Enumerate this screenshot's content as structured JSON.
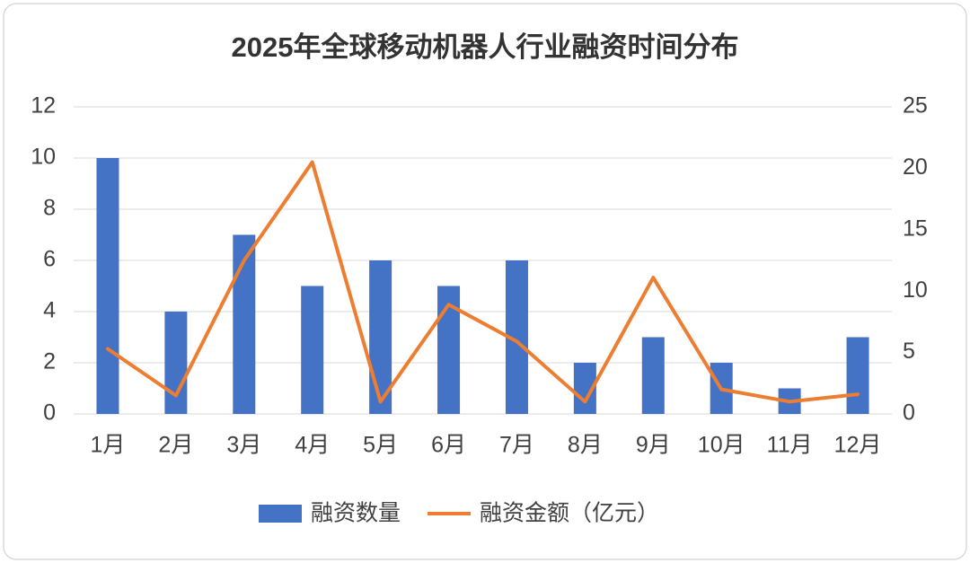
{
  "chart_data": {
    "type": "combo",
    "title": "2025年全球移动机器人行业融资时间分布",
    "categories": [
      "1月",
      "2月",
      "3月",
      "4月",
      "5月",
      "6月",
      "7月",
      "8月",
      "9月",
      "10月",
      "11月",
      "12月"
    ],
    "series": [
      {
        "name": "融资数量",
        "type": "bar",
        "color": "#4472c4",
        "values": [
          10,
          4,
          7,
          5,
          6,
          5,
          6,
          2,
          3,
          2,
          1,
          3
        ]
      },
      {
        "name": "融资金额（亿元）",
        "type": "line",
        "axis": "y2",
        "color": "#ed7d31",
        "values": [
          5.3,
          1.5,
          12.5,
          20.5,
          1.0,
          8.9,
          5.9,
          1.0,
          11.1,
          2.0,
          1.0,
          1.6
        ]
      }
    ],
    "ylim": [
      0,
      12
    ],
    "yticks": [
      0,
      2,
      4,
      6,
      8,
      10,
      12
    ],
    "y2lim": [
      0,
      25
    ],
    "y2ticks": [
      0,
      5,
      10,
      15,
      20,
      25
    ],
    "grid": true,
    "legend": "bottom"
  }
}
